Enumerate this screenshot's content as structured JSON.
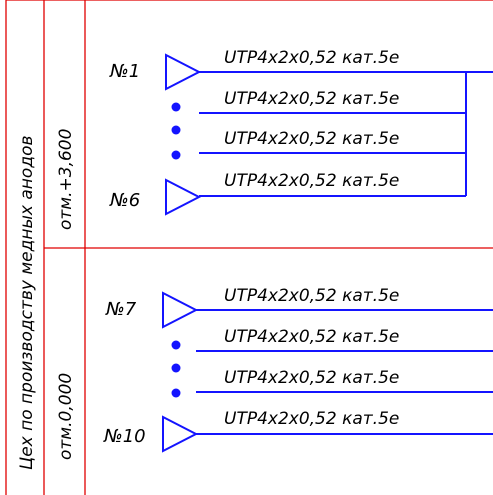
{
  "workshop_label": "Цех по производству медных анодов",
  "levels": [
    {
      "elevation": "отм.+3,600",
      "top_device": "№1",
      "bottom_device": "№6",
      "cables": [
        "UTP4x2x0,52 кат.5е",
        "UTP4x2x0,52 кат.5е",
        "UTP4x2x0,52 кат.5е",
        "UTP4x2x0,52 кат.5е"
      ]
    },
    {
      "elevation": "отм.0,000",
      "top_device": "№7",
      "bottom_device": "№10",
      "cables": [
        "UTP4x2x0,52 кат.5е",
        "UTP4x2x0,52 кат.5е",
        "UTP4x2x0,52 кат.5е",
        "UTP4x2x0,52 кат.5е"
      ]
    }
  ],
  "colors": {
    "frame": "#e00000",
    "wiring": "#1414ff",
    "text": "#000000"
  }
}
